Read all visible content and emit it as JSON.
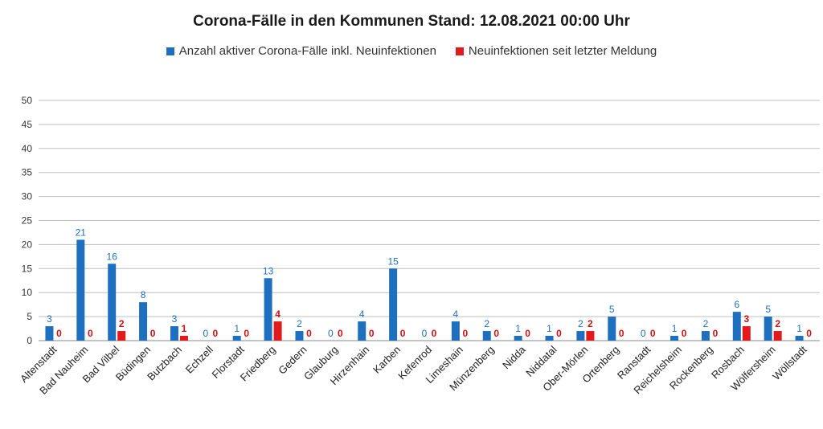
{
  "chart_data": {
    "type": "bar",
    "title": "Corona-Fälle in den Kommunen Stand: 12.08.2021 00:00 Uhr",
    "categories": [
      "Altenstadt",
      "Bad Nauheim",
      "Bad Vilbel",
      "Büdingen",
      "Butzbach",
      "Echzell",
      "Florstadt",
      "Friedberg",
      "Gedern",
      "Glauburg",
      "Hirzenhain",
      "Karben",
      "Kefenrod",
      "Limeshain",
      "Münzenberg",
      "Nidda",
      "Niddatal",
      "Ober-Mörlen",
      "Ortenberg",
      "Ranstadt",
      "Reichelsheim",
      "Rockenberg",
      "Rosbach",
      "Wölfersheim",
      "Wöllstadt"
    ],
    "series": [
      {
        "name": "Anzahl aktiver Corona-Fälle inkl. Neuinfektionen",
        "color": "#1f6fbf",
        "values": [
          3,
          21,
          16,
          8,
          3,
          0,
          1,
          13,
          2,
          0,
          4,
          15,
          0,
          4,
          2,
          1,
          1,
          2,
          5,
          0,
          1,
          2,
          6,
          5,
          1
        ]
      },
      {
        "name": "Neuinfektionen seit letzter Meldung",
        "color": "#e31a1c",
        "values": [
          0,
          0,
          2,
          0,
          1,
          0,
          0,
          4,
          0,
          0,
          0,
          0,
          0,
          0,
          0,
          0,
          0,
          2,
          0,
          0,
          0,
          0,
          3,
          2,
          0
        ]
      }
    ],
    "ylim": [
      0,
      50
    ],
    "yticks": [
      0,
      5,
      10,
      15,
      20,
      25,
      30,
      35,
      40,
      45,
      50
    ],
    "grid": true,
    "legend_position": "top"
  }
}
